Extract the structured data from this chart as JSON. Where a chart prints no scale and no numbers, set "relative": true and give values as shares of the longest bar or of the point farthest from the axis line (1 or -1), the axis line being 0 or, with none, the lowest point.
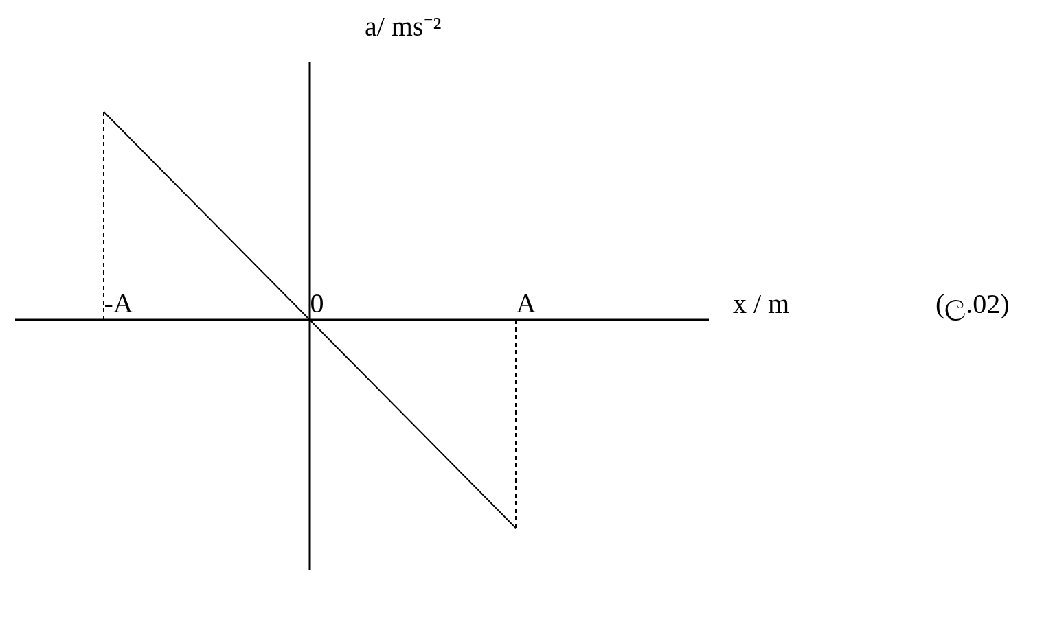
{
  "chart_data": {
    "type": "line",
    "relative": true,
    "xlabel": "x / m",
    "ylabel": "a/ ms⁻²",
    "categories": [
      "-A",
      "0",
      "A"
    ],
    "values": [
      1,
      0,
      -1
    ],
    "color": "#000000",
    "marker": "none",
    "line_style": "solid",
    "grid": false,
    "ref_lines": [
      {
        "axis": "x",
        "value": "0",
        "line_style": "solid"
      },
      {
        "axis": "x",
        "value": "-A",
        "line_style": "dashed"
      },
      {
        "axis": "x",
        "value": "A",
        "line_style": "dashed"
      }
    ],
    "annotations": [
      "(ල.02)"
    ]
  }
}
